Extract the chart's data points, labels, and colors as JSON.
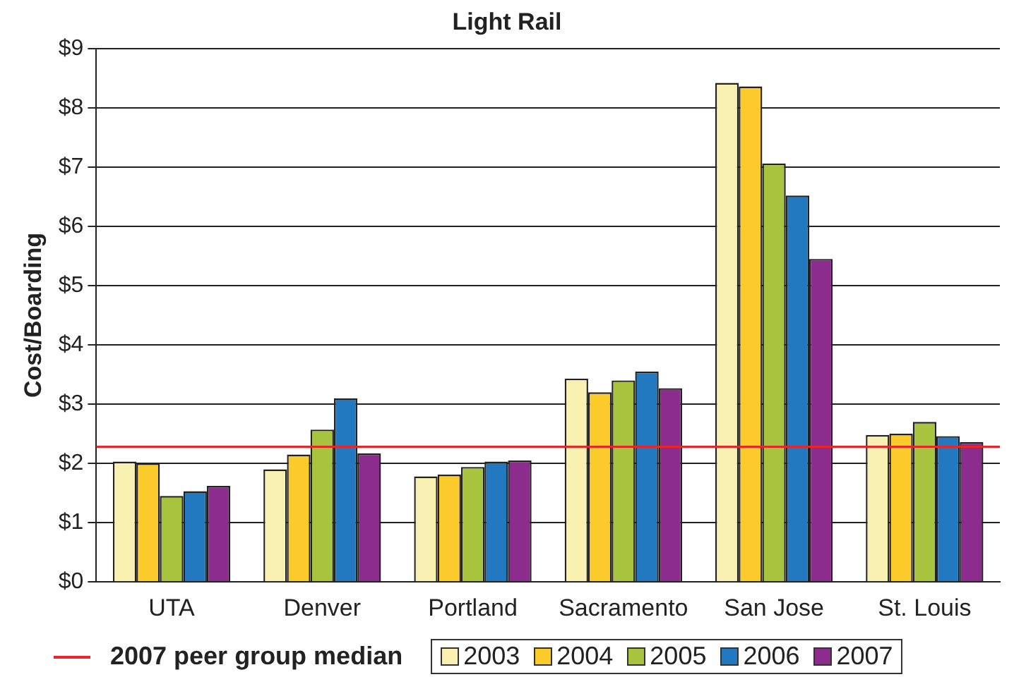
{
  "chart_data": {
    "type": "bar",
    "title": "Light Rail",
    "ylabel": "Cost/Boarding",
    "categories": [
      "UTA",
      "Denver",
      "Portland",
      "Sacramento",
      "San Jose",
      "St. Louis"
    ],
    "series": [
      {
        "name": "2003",
        "color": "#f8f0b0",
        "values": [
          2.03,
          1.9,
          1.78,
          3.43,
          8.42,
          2.48
        ]
      },
      {
        "name": "2004",
        "color": "#fbcb2b",
        "values": [
          2.0,
          2.15,
          1.81,
          3.2,
          8.36,
          2.5
        ]
      },
      {
        "name": "2005",
        "color": "#a8c43e",
        "values": [
          1.45,
          2.57,
          1.94,
          3.4,
          7.06,
          2.7
        ]
      },
      {
        "name": "2006",
        "color": "#2379c0",
        "values": [
          1.53,
          3.1,
          2.03,
          3.55,
          6.52,
          2.46
        ]
      },
      {
        "name": "2007",
        "color": "#8c2c8c",
        "values": [
          1.62,
          2.17,
          2.05,
          3.27,
          5.45,
          2.36
        ]
      }
    ],
    "ylim": [
      0,
      9
    ],
    "yticks": [
      {
        "value": 0,
        "label": "$0"
      },
      {
        "value": 1,
        "label": "$1"
      },
      {
        "value": 2,
        "label": "$2"
      },
      {
        "value": 3,
        "label": "$3"
      },
      {
        "value": 4,
        "label": "$4"
      },
      {
        "value": 5,
        "label": "$5"
      },
      {
        "value": 6,
        "label": "$6"
      },
      {
        "value": 7,
        "label": "$7"
      },
      {
        "value": 8,
        "label": "$8"
      },
      {
        "value": 9,
        "label": "$9"
      }
    ],
    "ref_lines": [
      {
        "axis": "y",
        "value": 2.28,
        "label": "2007 peer group median",
        "color": "#e8262a"
      }
    ],
    "grid": "y",
    "legend": "bottom"
  }
}
